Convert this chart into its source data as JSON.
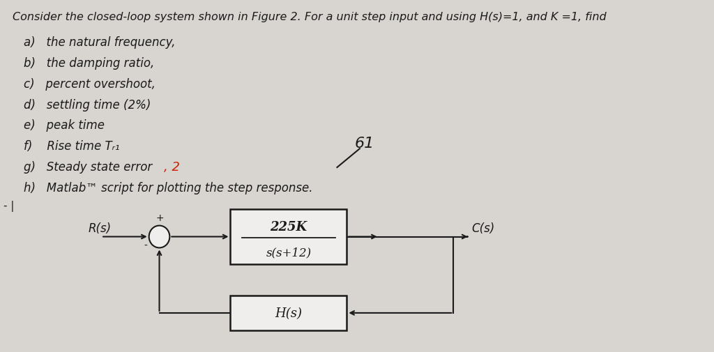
{
  "bg_color": "#d8d4d0",
  "text_color": "#1a1a1a",
  "title_line": "Consider the closed-loop system shown in Figure 2. For a unit step input and using H(s)=1, and K =1, find",
  "items": [
    "a)   the natural frequency,",
    "b)   the damping ratio,",
    "c)   percent overshoot,",
    "d)   settling time (2%)",
    "e)   peak time",
    "f)    Rise time Tᵣ₁",
    "g)   Steady state error",
    "h)   Matlab™ script for plotting the step response."
  ],
  "annotation_g": ", 2",
  "annotation_61": "61",
  "label_Rs": "R(s)",
  "label_Cs": "C(s)",
  "label_plus": "+",
  "label_minus": "-",
  "tf_numerator": "225K",
  "tf_denominator": "s(s+12)",
  "feedback_label": "H(s)",
  "box_color": "#1a1a1a",
  "box_fill": "#f0eeec",
  "circle_color": "#1a1a1a",
  "arrow_color": "#1a1a1a",
  "font_main": 12,
  "font_title": 11.5
}
